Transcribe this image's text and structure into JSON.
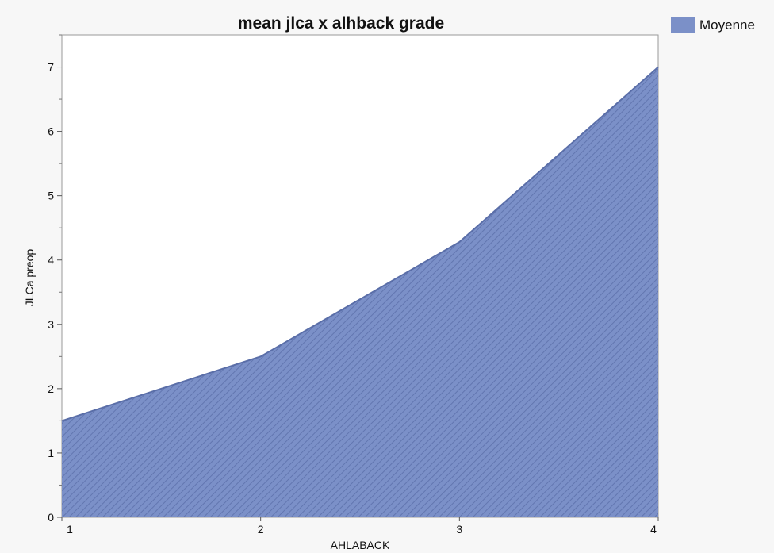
{
  "chart_data": {
    "type": "area",
    "title": "mean jlca x alhback grade",
    "xlabel": "AHLABACK",
    "ylabel": "JLCa preop",
    "x": [
      1,
      2,
      3,
      4
    ],
    "x_ticks": [
      "1",
      "2",
      "3",
      "4"
    ],
    "y_ticks": [
      "0",
      "1",
      "2",
      "3",
      "4",
      "5",
      "6",
      "7"
    ],
    "xlim": [
      1,
      4
    ],
    "ylim": [
      0,
      7.5
    ],
    "grid": false,
    "legend_position": "top-right",
    "series": [
      {
        "name": "Moyenne",
        "values": [
          1.5,
          2.5,
          4.28,
          7.0
        ],
        "color": "#7b90c8"
      }
    ]
  }
}
